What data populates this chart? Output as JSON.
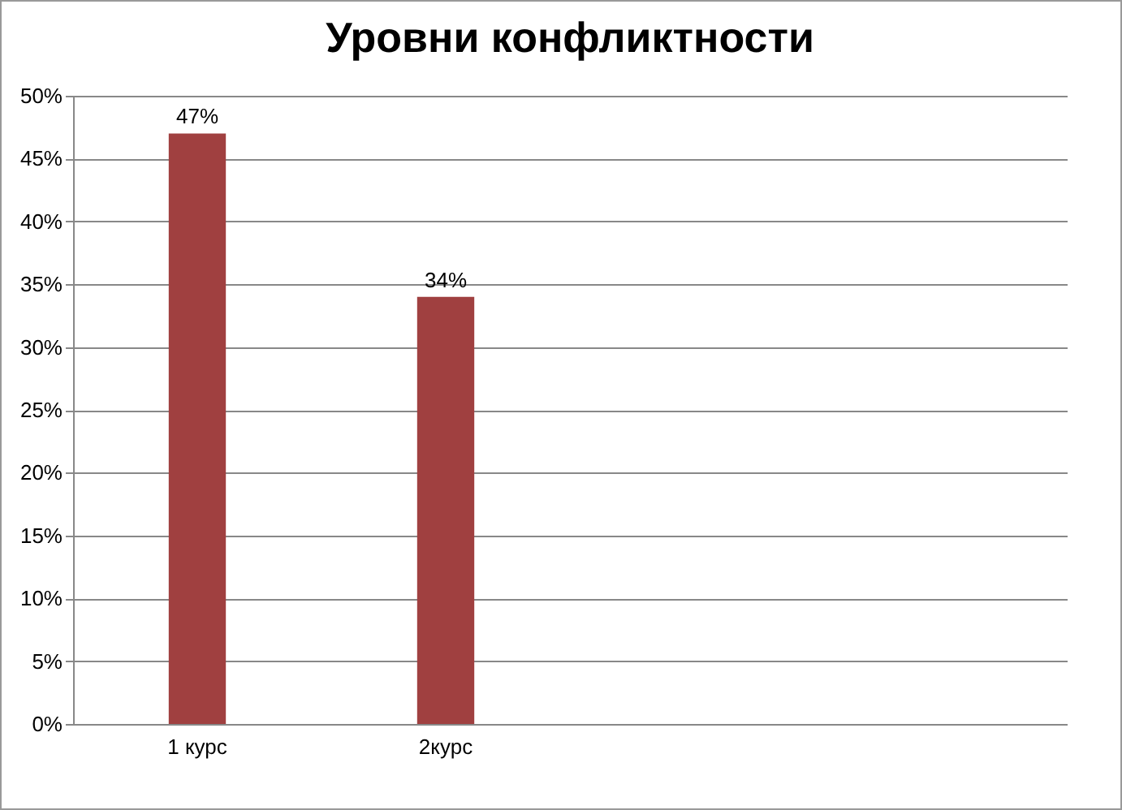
{
  "chart_data": {
    "type": "bar",
    "title": "Уровни конфликтности",
    "categories": [
      "1 курс",
      "2курс",
      null,
      null
    ],
    "values": [
      47,
      34,
      null,
      null
    ],
    "value_labels": [
      "47%",
      "34%",
      null,
      null
    ],
    "color": "#a04040",
    "ylim": [
      0,
      50
    ],
    "yticks": [
      {
        "value": 0,
        "label": "0%"
      },
      {
        "value": 5,
        "label": "5%"
      },
      {
        "value": 10,
        "label": "10%"
      },
      {
        "value": 15,
        "label": "15%"
      },
      {
        "value": 20,
        "label": "20%"
      },
      {
        "value": 25,
        "label": "25%"
      },
      {
        "value": 30,
        "label": "30%"
      },
      {
        "value": 35,
        "label": "35%"
      },
      {
        "value": 40,
        "label": "40%"
      },
      {
        "value": 45,
        "label": "45%"
      },
      {
        "value": 50,
        "label": "50%"
      }
    ],
    "grid": "y"
  }
}
